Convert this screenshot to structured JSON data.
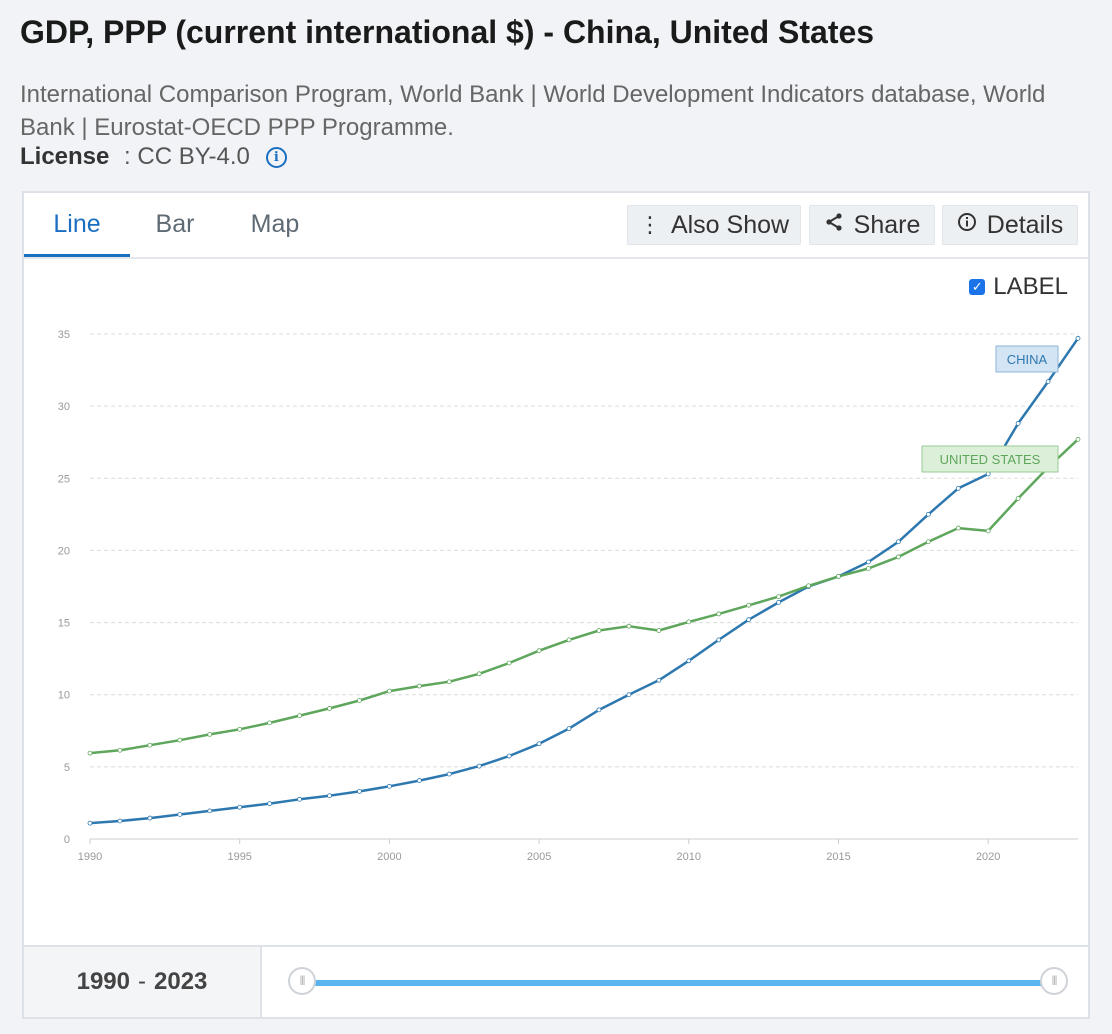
{
  "page": {
    "title": "GDP, PPP (current international $) - China, United States",
    "sources": "International Comparison Program, World Bank | World Development Indicators database, World Bank | Eurostat-OECD PPP Programme.",
    "license_label": "License",
    "license_sep": " : ",
    "license_value": "CC BY-4.0"
  },
  "tabs": [
    {
      "label": "Line",
      "active": true
    },
    {
      "label": "Bar",
      "active": false
    },
    {
      "label": "Map",
      "active": false
    }
  ],
  "toolbar": {
    "also_show": "Also Show",
    "share": "Share",
    "details": "Details"
  },
  "label_toggle": {
    "text": "LABEL",
    "checked": true
  },
  "range": {
    "start": "1990",
    "sep": "-",
    "end": "2023"
  },
  "icons": {
    "info": "info-icon",
    "also_show": "vertical-dots-icon",
    "share": "share-icon",
    "details": "info-circle-icon",
    "checkbox": "checkbox-checked-icon",
    "handle": "slider-grip-icon"
  },
  "colors": {
    "china": "#2e78b0",
    "us": "#5ea65b",
    "accent": "#1a6fc0"
  },
  "chart_data": {
    "type": "line",
    "x": [
      1990,
      1991,
      1992,
      1993,
      1994,
      1995,
      1996,
      1997,
      1998,
      1999,
      2000,
      2001,
      2002,
      2003,
      2004,
      2005,
      2006,
      2007,
      2008,
      2009,
      2010,
      2011,
      2012,
      2013,
      2014,
      2015,
      2016,
      2017,
      2018,
      2019,
      2020,
      2021,
      2022,
      2023
    ],
    "xticks": [
      1990,
      1995,
      2000,
      2005,
      2010,
      2015,
      2020
    ],
    "yticks": [
      0,
      5,
      10,
      15,
      20,
      25,
      30,
      35
    ],
    "ylim": [
      0,
      35
    ],
    "xlim": [
      1990,
      2023
    ],
    "grid": true,
    "series": [
      {
        "name": "CHINA",
        "color": "#2e78b0",
        "values": [
          1.1,
          1.25,
          1.45,
          1.7,
          1.95,
          2.2,
          2.45,
          2.75,
          3.0,
          3.3,
          3.65,
          4.05,
          4.5,
          5.05,
          5.75,
          6.6,
          7.65,
          8.95,
          10.0,
          11.0,
          12.35,
          13.8,
          15.2,
          16.4,
          17.5,
          18.2,
          19.2,
          20.6,
          22.5,
          24.3,
          25.3,
          28.8,
          31.7,
          34.7
        ]
      },
      {
        "name": "UNITED STATES",
        "color": "#5ea65b",
        "values": [
          5.95,
          6.15,
          6.5,
          6.85,
          7.25,
          7.6,
          8.05,
          8.55,
          9.05,
          9.6,
          10.25,
          10.6,
          10.9,
          11.45,
          12.2,
          13.05,
          13.8,
          14.45,
          14.75,
          14.45,
          15.05,
          15.6,
          16.2,
          16.8,
          17.55,
          18.2,
          18.75,
          19.55,
          20.6,
          21.55,
          21.35,
          23.6,
          25.75,
          27.7
        ]
      }
    ]
  }
}
